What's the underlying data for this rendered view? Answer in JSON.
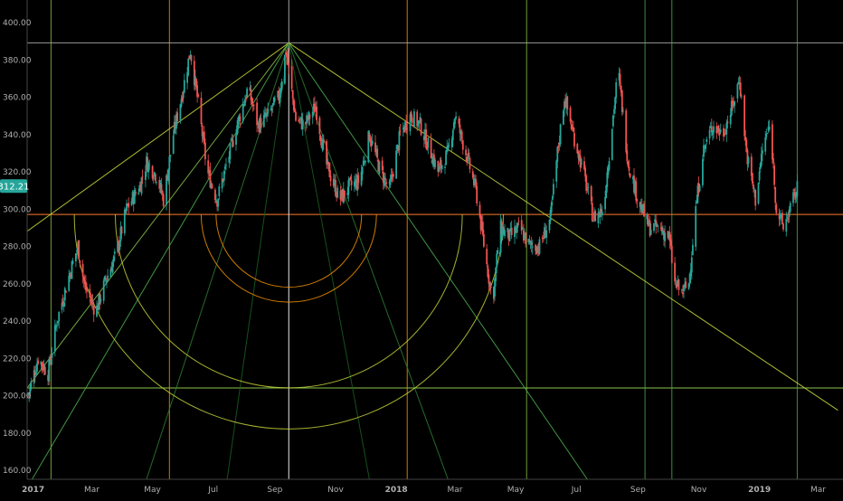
{
  "chart_data": {
    "type": "candlestick",
    "title": "",
    "xlabel": "",
    "ylabel": "",
    "ylim": [
      155,
      412
    ],
    "y_ticks": [
      "160.00",
      "180.00",
      "200.00",
      "220.00",
      "240.00",
      "260.00",
      "280.00",
      "300.00",
      "320.00",
      "340.00",
      "360.00",
      "380.00",
      "400.00"
    ],
    "y_tick_values": [
      160,
      180,
      200,
      220,
      240,
      260,
      280,
      300,
      320,
      340,
      360,
      380,
      400
    ],
    "x_ticks": [
      "2017",
      "Mar",
      "May",
      "Jul",
      "Sep",
      "Nov",
      "2018",
      "Mar",
      "May",
      "Jul",
      "Sep",
      "Nov",
      "2019",
      "Mar"
    ],
    "x_tick_dates": [
      "2017-01-01",
      "2017-03-01",
      "2017-05-01",
      "2017-07-01",
      "2017-09-01",
      "2017-11-01",
      "2018-01-01",
      "2018-03-01",
      "2018-05-01",
      "2018-07-01",
      "2018-09-01",
      "2018-11-01",
      "2019-01-01",
      "2019-03-01"
    ],
    "xlim": [
      "2016-12-26",
      "2019-03-26"
    ],
    "last_price": "312.21",
    "up_color": "#26a69a",
    "down_color": "#ef5350",
    "price_tag_color": "#26a69a",
    "grid": false,
    "close_series": [
      {
        "date": "2016-12-27",
        "close": 200
      },
      {
        "date": "2017-01-06",
        "close": 220
      },
      {
        "date": "2017-01-16",
        "close": 212
      },
      {
        "date": "2017-01-25",
        "close": 240
      },
      {
        "date": "2017-02-05",
        "close": 262
      },
      {
        "date": "2017-02-15",
        "close": 280
      },
      {
        "date": "2017-02-22",
        "close": 258
      },
      {
        "date": "2017-03-05",
        "close": 245
      },
      {
        "date": "2017-03-15",
        "close": 262
      },
      {
        "date": "2017-03-25",
        "close": 275
      },
      {
        "date": "2017-04-05",
        "close": 300
      },
      {
        "date": "2017-04-18",
        "close": 312
      },
      {
        "date": "2017-04-25",
        "close": 325
      },
      {
        "date": "2017-05-05",
        "close": 318
      },
      {
        "date": "2017-05-12",
        "close": 305
      },
      {
        "date": "2017-05-22",
        "close": 340
      },
      {
        "date": "2017-06-01",
        "close": 365
      },
      {
        "date": "2017-06-08",
        "close": 385
      },
      {
        "date": "2017-06-15",
        "close": 360
      },
      {
        "date": "2017-06-25",
        "close": 320
      },
      {
        "date": "2017-07-05",
        "close": 305
      },
      {
        "date": "2017-07-15",
        "close": 325
      },
      {
        "date": "2017-07-25",
        "close": 345
      },
      {
        "date": "2017-08-05",
        "close": 365
      },
      {
        "date": "2017-08-15",
        "close": 345
      },
      {
        "date": "2017-08-25",
        "close": 350
      },
      {
        "date": "2017-09-05",
        "close": 360
      },
      {
        "date": "2017-09-12",
        "close": 385
      },
      {
        "date": "2017-09-22",
        "close": 348
      },
      {
        "date": "2017-10-01",
        "close": 345
      },
      {
        "date": "2017-10-12",
        "close": 355
      },
      {
        "date": "2017-10-22",
        "close": 325
      },
      {
        "date": "2017-11-05",
        "close": 305
      },
      {
        "date": "2017-11-15",
        "close": 312
      },
      {
        "date": "2017-11-25",
        "close": 315
      },
      {
        "date": "2017-12-05",
        "close": 340
      },
      {
        "date": "2017-12-15",
        "close": 322
      },
      {
        "date": "2017-12-25",
        "close": 310
      },
      {
        "date": "2018-01-05",
        "close": 340
      },
      {
        "date": "2018-01-15",
        "close": 350
      },
      {
        "date": "2018-01-25",
        "close": 345
      },
      {
        "date": "2018-02-05",
        "close": 330
      },
      {
        "date": "2018-02-12",
        "close": 320
      },
      {
        "date": "2018-02-22",
        "close": 330
      },
      {
        "date": "2018-03-01",
        "close": 350
      },
      {
        "date": "2018-03-12",
        "close": 330
      },
      {
        "date": "2018-03-22",
        "close": 310
      },
      {
        "date": "2018-04-02",
        "close": 270
      },
      {
        "date": "2018-04-08",
        "close": 250
      },
      {
        "date": "2018-04-15",
        "close": 290
      },
      {
        "date": "2018-04-25",
        "close": 285
      },
      {
        "date": "2018-05-05",
        "close": 290
      },
      {
        "date": "2018-05-15",
        "close": 280
      },
      {
        "date": "2018-05-25",
        "close": 280
      },
      {
        "date": "2018-06-05",
        "close": 295
      },
      {
        "date": "2018-06-12",
        "close": 330
      },
      {
        "date": "2018-06-19",
        "close": 360
      },
      {
        "date": "2018-06-28",
        "close": 340
      },
      {
        "date": "2018-07-08",
        "close": 320
      },
      {
        "date": "2018-07-18",
        "close": 295
      },
      {
        "date": "2018-07-28",
        "close": 300
      },
      {
        "date": "2018-08-07",
        "close": 350
      },
      {
        "date": "2018-08-12",
        "close": 375
      },
      {
        "date": "2018-08-22",
        "close": 325
      },
      {
        "date": "2018-09-01",
        "close": 305
      },
      {
        "date": "2018-09-12",
        "close": 290
      },
      {
        "date": "2018-09-22",
        "close": 290
      },
      {
        "date": "2018-10-02",
        "close": 285
      },
      {
        "date": "2018-10-08",
        "close": 260
      },
      {
        "date": "2018-10-15",
        "close": 255
      },
      {
        "date": "2018-10-22",
        "close": 260
      },
      {
        "date": "2018-10-29",
        "close": 300
      },
      {
        "date": "2018-11-05",
        "close": 330
      },
      {
        "date": "2018-11-15",
        "close": 345
      },
      {
        "date": "2018-11-25",
        "close": 340
      },
      {
        "date": "2018-12-05",
        "close": 355
      },
      {
        "date": "2018-12-12",
        "close": 370
      },
      {
        "date": "2018-12-19",
        "close": 330
      },
      {
        "date": "2018-12-28",
        "close": 305
      },
      {
        "date": "2019-01-05",
        "close": 335
      },
      {
        "date": "2019-01-12",
        "close": 345
      },
      {
        "date": "2019-01-18",
        "close": 300
      },
      {
        "date": "2019-01-25",
        "close": 290
      },
      {
        "date": "2019-02-04",
        "close": 305
      },
      {
        "date": "2019-02-09",
        "close": 312
      }
    ],
    "horizontal_levels": [
      {
        "value": 389,
        "color": "#999999"
      },
      {
        "value": 297,
        "color": "#ff7d2a"
      },
      {
        "value": 204,
        "color": "#8bc34a"
      }
    ],
    "vertical_lines": [
      {
        "date": "2017-01-19",
        "color": "#8bc34a"
      },
      {
        "date": "2017-05-18",
        "color": "#ff9800"
      },
      {
        "date": "2017-09-15",
        "color": "#cccccc"
      },
      {
        "date": "2018-01-12",
        "color": "#ff9800"
      },
      {
        "date": "2018-05-12",
        "color": "#8bc34a"
      },
      {
        "date": "2018-09-08",
        "color": "#4caf50"
      },
      {
        "date": "2018-10-05",
        "color": "#4caf50"
      },
      {
        "date": "2019-02-08",
        "color": "#4caf50"
      }
    ],
    "fan_apex": {
      "date": "2017-09-15",
      "value": 389
    },
    "fan_targets": [
      {
        "date": "2016-12-26",
        "value": 288,
        "color": "#cddc39"
      },
      {
        "date": "2016-12-26",
        "value": 204,
        "color": "#8bc34a"
      },
      {
        "date": "2016-12-31",
        "value": 155,
        "color": "#4caf50"
      },
      {
        "date": "2017-04-25",
        "value": 155,
        "color": "#2e7d32"
      },
      {
        "date": "2017-07-15",
        "value": 155,
        "color": "#1b5e20"
      },
      {
        "date": "2017-09-15",
        "value": 155,
        "color": "#cccccc"
      },
      {
        "date": "2017-12-05",
        "value": 155,
        "color": "#1b5e20"
      },
      {
        "date": "2018-02-22",
        "value": 155,
        "color": "#2e7d32"
      },
      {
        "date": "2018-07-12",
        "value": 155,
        "color": "#4caf50"
      },
      {
        "date": "2019-03-21",
        "value": 192,
        "color": "#cddc39"
      }
    ],
    "arcs": [
      {
        "center_date": "2017-09-15",
        "center_value": 297,
        "radius_value": 39,
        "color": "#ff9800"
      },
      {
        "center_date": "2017-09-15",
        "center_value": 297,
        "radius_value": 47,
        "color": "#ff9800"
      },
      {
        "center_date": "2017-09-15",
        "center_value": 297,
        "radius_value": 93,
        "color": "#cddc39"
      },
      {
        "center_date": "2017-09-15",
        "center_value": 297,
        "radius_value": 115,
        "color": "#cddc39"
      }
    ]
  }
}
